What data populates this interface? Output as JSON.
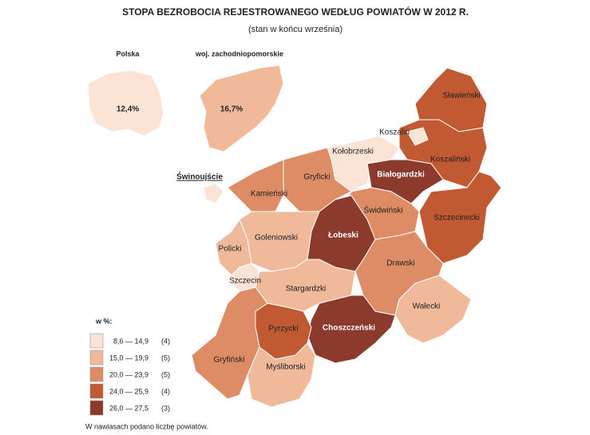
{
  "header": {
    "title": "STOPA BEZROBOCIA REJESTROWANEGO WEDŁUG POWIATÓW W 2012 R.",
    "subtitle": "(stan w końcu września)"
  },
  "insets": [
    {
      "label": "Polska",
      "value": "12,4%",
      "color": "#fbe3d6"
    },
    {
      "label": "woj. zachodniopomorskie",
      "value": "16,7%",
      "color": "#f0b99a"
    }
  ],
  "regions": [
    {
      "name": "Sławieński",
      "color": "#c15a32"
    },
    {
      "name": "Koszaliński",
      "color": "#c15a32"
    },
    {
      "name": "Koszalin",
      "color": "#fbe3d6"
    },
    {
      "name": "Szczecinecki",
      "color": "#c15a32"
    },
    {
      "name": "Kołobrzeski",
      "color": "#fbe3d6"
    },
    {
      "name": "Białogardzki",
      "color": "#8c3a2c"
    },
    {
      "name": "Gryficki",
      "color": "#dd8c66"
    },
    {
      "name": "Kamieński",
      "color": "#dd8c66"
    },
    {
      "name": "Świdwiński",
      "color": "#dd8c66"
    },
    {
      "name": "Łobeski",
      "color": "#8c3a2c"
    },
    {
      "name": "Goleniowski",
      "color": "#f0b99a"
    },
    {
      "name": "Policki",
      "color": "#f0b99a"
    },
    {
      "name": "Szczecin",
      "color": "#fbe3d6"
    },
    {
      "name": "Stargardzki",
      "color": "#f0b99a"
    },
    {
      "name": "Drawski",
      "color": "#dd8c66"
    },
    {
      "name": "Wałecki",
      "color": "#f0b99a"
    },
    {
      "name": "Choszczeński",
      "color": "#8c3a2c"
    },
    {
      "name": "Pyrzycki",
      "color": "#c15a32"
    },
    {
      "name": "Gryfiński",
      "color": "#dd8c66"
    },
    {
      "name": "Myśliborski",
      "color": "#f0b99a"
    },
    {
      "name": "Świnoujście",
      "color": "#fbe3d6"
    }
  ],
  "legend": {
    "title": "w %:",
    "items": [
      {
        "range": "8,6 — 14,9",
        "count": "(4)",
        "color": "#fbe3d6"
      },
      {
        "range": "15,0 — 19,9",
        "count": "(5)",
        "color": "#f0b99a"
      },
      {
        "range": "20,0 — 23,9",
        "count": "(5)",
        "color": "#dd8c66"
      },
      {
        "range": "24,0 — 25,9",
        "count": "(4)",
        "color": "#c15a32"
      },
      {
        "range": "26,0 — 27,5",
        "count": "(3)",
        "color": "#8c3a2c"
      }
    ]
  },
  "note": "W nawiasach podano liczbę powiatów."
}
